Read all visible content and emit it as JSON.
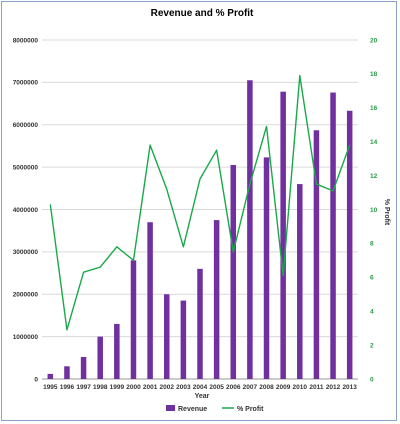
{
  "chart_data": {
    "type": "bar+line",
    "title": "Revenue and % Profit",
    "xlabel": "Year",
    "ylabel_left": "",
    "ylabel_right": "% Profit",
    "categories": [
      "1995",
      "1996",
      "1997",
      "1998",
      "1999",
      "2000",
      "2001",
      "2002",
      "2003",
      "2004",
      "2005",
      "2006",
      "2007",
      "2008",
      "2009",
      "2010",
      "2011",
      "2012",
      "2013"
    ],
    "left_axis": {
      "min": 0,
      "max": 8000000,
      "step": 1000000,
      "ticks": [
        "0",
        "1000000",
        "2000000",
        "3000000",
        "4000000",
        "5000000",
        "6000000",
        "7000000",
        "8000000"
      ]
    },
    "right_axis": {
      "min": 0,
      "max": 20,
      "step": 2,
      "ticks": [
        "0",
        "2",
        "4",
        "6",
        "8",
        "10",
        "12",
        "14",
        "16",
        "18",
        "20"
      ]
    },
    "series": [
      {
        "name": "Revenue",
        "type": "bar",
        "axis": "left",
        "color": "#7030a0",
        "values": [
          120000,
          300000,
          520000,
          1000000,
          1300000,
          2800000,
          3700000,
          2000000,
          1850000,
          2600000,
          3750000,
          5050000,
          7050000,
          5230000,
          6780000,
          4600000,
          5870000,
          6760000,
          6330000
        ]
      },
      {
        "name": "% Profit",
        "type": "line",
        "axis": "right",
        "color": "#1aa84a",
        "values": [
          10.3,
          2.9,
          6.3,
          6.6,
          7.8,
          7.0,
          13.8,
          11.2,
          7.8,
          11.8,
          13.5,
          7.5,
          11.5,
          14.9,
          6.1,
          17.9,
          11.5,
          11.1,
          13.8
        ]
      }
    ],
    "grid": true,
    "legend_position": "bottom"
  }
}
